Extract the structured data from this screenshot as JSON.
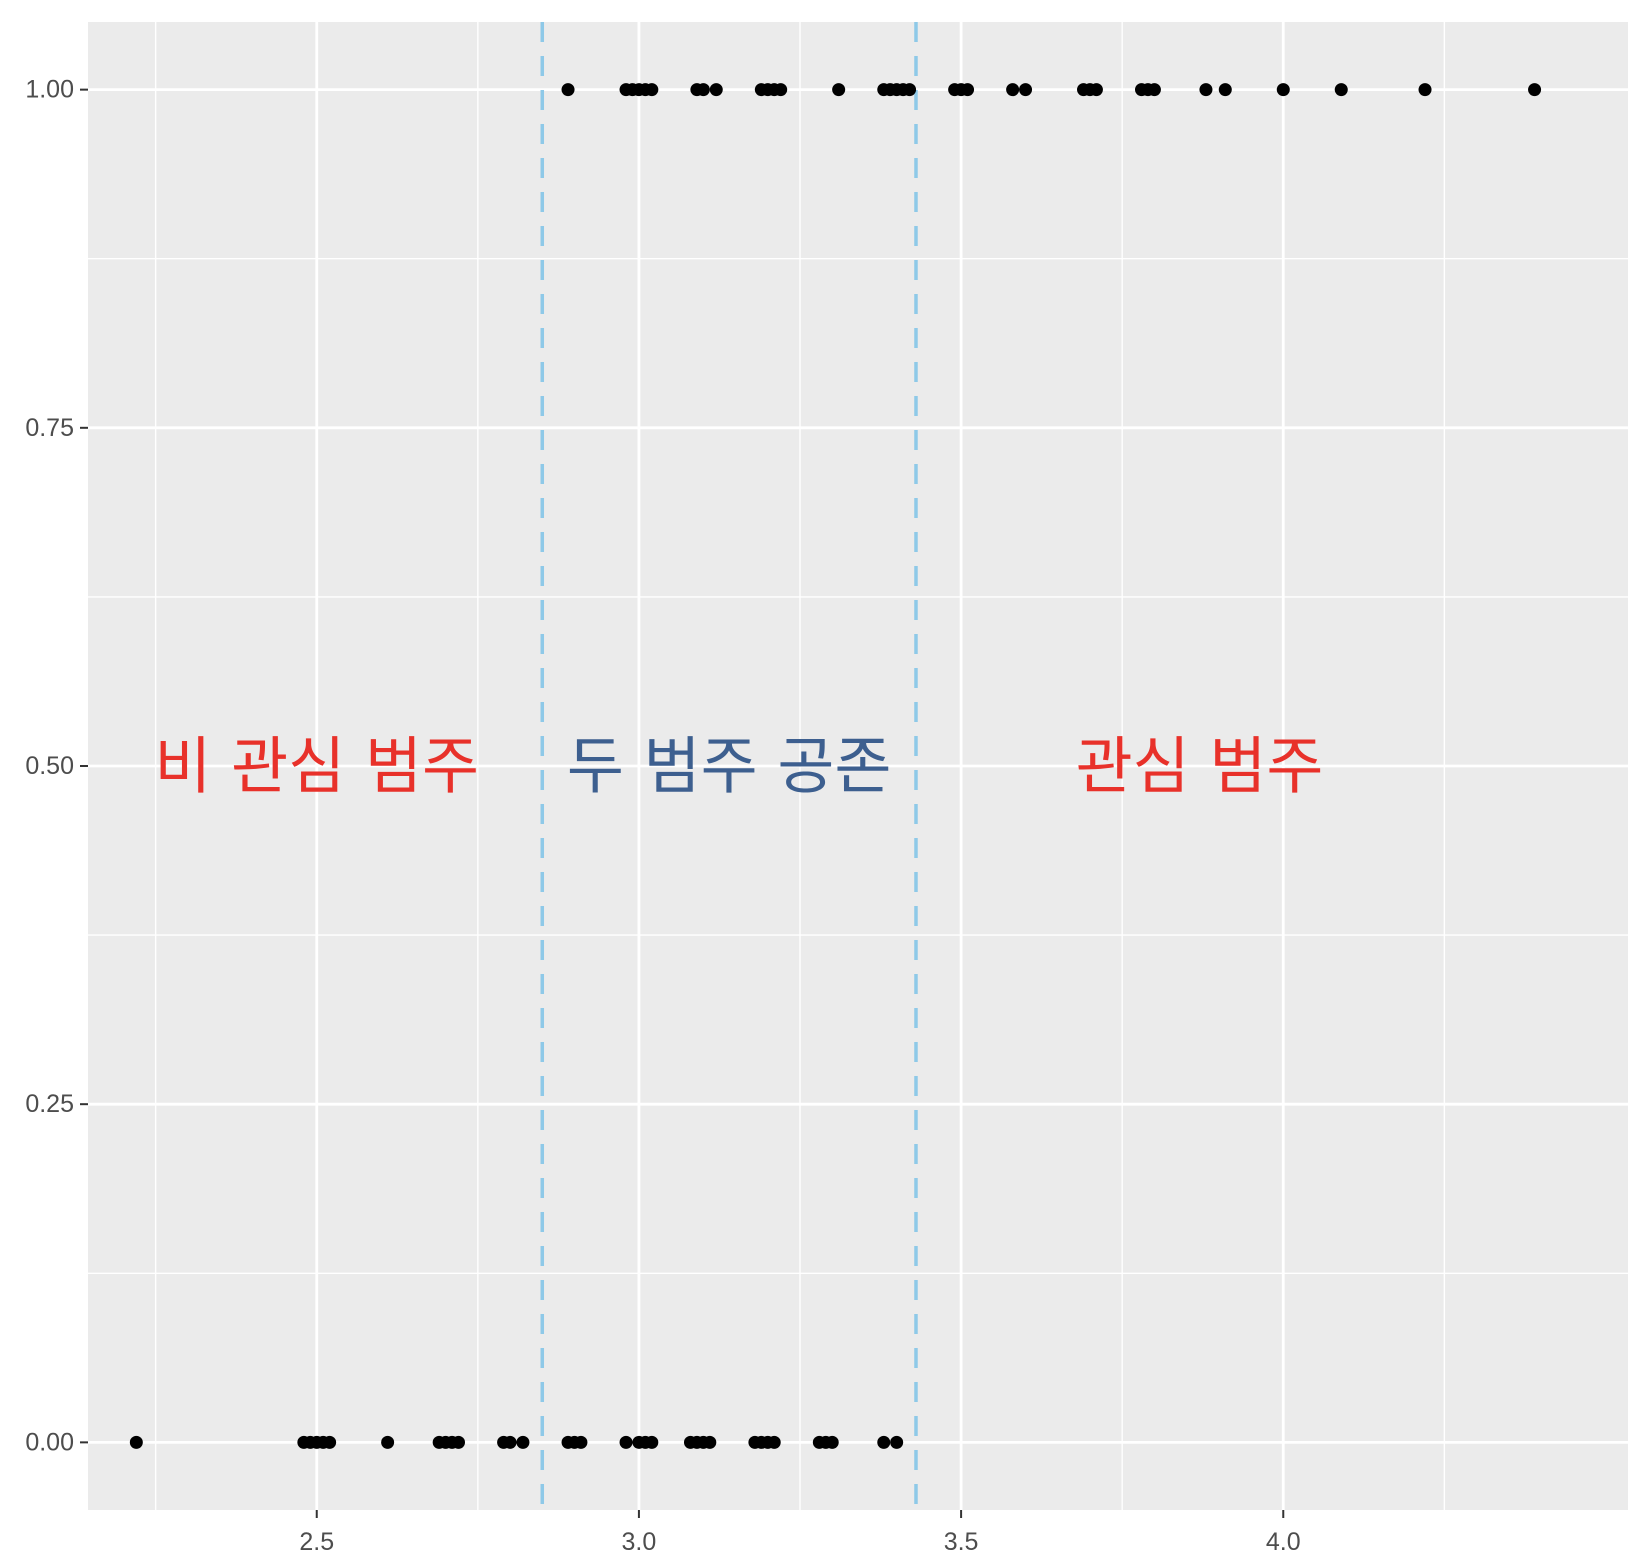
{
  "chart_data": {
    "type": "scatter",
    "title": "",
    "xlabel": "",
    "ylabel": "",
    "xlim": [
      2.145,
      4.535
    ],
    "ylim": [
      -0.05,
      1.05
    ],
    "x_ticks": [
      2.5,
      3.0,
      3.5,
      4.0
    ],
    "x_tick_labels": [
      "2.5",
      "3.0",
      "3.5",
      "4.0"
    ],
    "y_ticks": [
      0.0,
      0.25,
      0.5,
      0.75,
      1.0
    ],
    "y_tick_labels": [
      "0.00",
      "0.25",
      "0.50",
      "0.75",
      "1.00"
    ],
    "grid": true,
    "points_y1": [
      2.89,
      2.98,
      2.99,
      3.0,
      3.01,
      3.02,
      3.09,
      3.1,
      3.12,
      3.19,
      3.2,
      3.21,
      3.22,
      3.31,
      3.38,
      3.39,
      3.4,
      3.41,
      3.42,
      3.49,
      3.5,
      3.51,
      3.58,
      3.6,
      3.69,
      3.7,
      3.71,
      3.78,
      3.79,
      3.8,
      3.88,
      3.91,
      4.0,
      4.09,
      4.22,
      4.39
    ],
    "points_y0": [
      2.22,
      2.48,
      2.49,
      2.5,
      2.51,
      2.52,
      2.61,
      2.69,
      2.7,
      2.71,
      2.72,
      2.79,
      2.8,
      2.82,
      2.89,
      2.9,
      2.91,
      2.98,
      3.0,
      3.01,
      3.02,
      3.08,
      3.09,
      3.1,
      3.11,
      3.18,
      3.19,
      3.2,
      3.21,
      3.28,
      3.29,
      3.3,
      3.38,
      3.4
    ],
    "vlines": [
      2.85,
      3.43
    ],
    "vline_color": "#8ec9e8",
    "region_labels": [
      {
        "text": "비 관심 범주",
        "x": 2.5,
        "y": 0.5,
        "color": "#e8312a"
      },
      {
        "text": "두 범주 공존",
        "x": 3.14,
        "y": 0.5,
        "color": "#3d5f8f"
      },
      {
        "text": "관심 범주",
        "x": 3.87,
        "y": 0.5,
        "color": "#e8312a"
      }
    ],
    "panel_color": "#ebebeb",
    "grid_color": "#ffffff",
    "point_color": "#000000"
  }
}
